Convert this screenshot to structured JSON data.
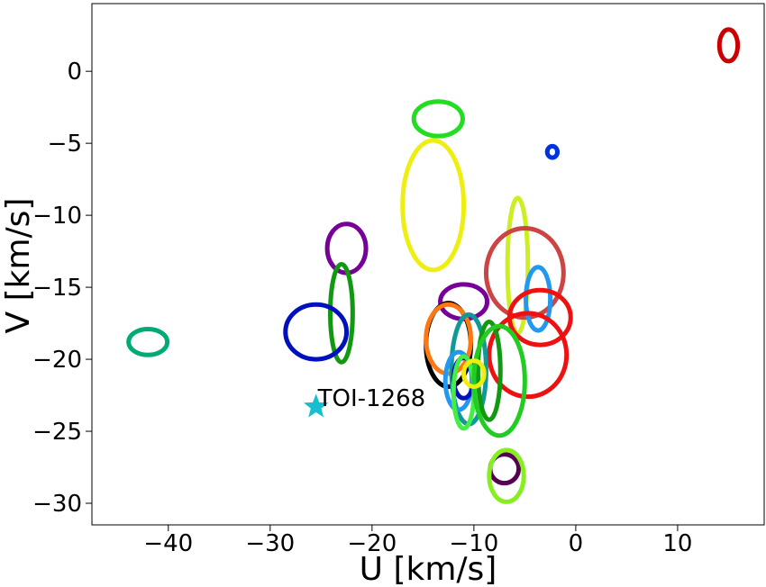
{
  "chart_data": {
    "type": "scatter",
    "xlabel": "U [km/s]",
    "ylabel": "V [km/s]",
    "xlim": [
      -47.5,
      18.5
    ],
    "ylim": [
      -31.5,
      4.7
    ],
    "xticks": [
      -40,
      -30,
      -20,
      -10,
      0,
      10
    ],
    "yticks": [
      0,
      -5,
      -10,
      -15,
      -20,
      -25,
      -30
    ],
    "xtick_labels": [
      "−40",
      "−30",
      "−20",
      "−10",
      "0",
      "10"
    ],
    "ytick_labels": [
      "0",
      "−5",
      "−10",
      "−15",
      "−20",
      "−25",
      "−30"
    ],
    "grid": false,
    "marker": {
      "label": "TOI-1268",
      "u": -25.5,
      "v": -23.3,
      "color": "#17becf",
      "shape": "star"
    },
    "ellipses": [
      {
        "u": 15.0,
        "v": 1.8,
        "du": 0.9,
        "dv": 1.1,
        "color": "#cc0000"
      },
      {
        "u": -2.3,
        "v": -5.6,
        "du": 0.5,
        "dv": 0.4,
        "color": "#0033dd"
      },
      {
        "u": -13.5,
        "v": -3.3,
        "du": 2.4,
        "dv": 1.2,
        "color": "#22dd22"
      },
      {
        "u": -14.0,
        "v": -9.3,
        "du": 3.0,
        "dv": 4.5,
        "color": "#eeee11"
      },
      {
        "u": -22.5,
        "v": -12.3,
        "du": 1.9,
        "dv": 1.7,
        "color": "#770099"
      },
      {
        "u": -23.0,
        "v": -16.8,
        "du": 1.1,
        "dv": 3.4,
        "color": "#119911"
      },
      {
        "u": -25.5,
        "v": -18.1,
        "du": 3.0,
        "dv": 1.9,
        "color": "#0011bb"
      },
      {
        "u": -42.0,
        "v": -18.8,
        "du": 1.9,
        "dv": 0.9,
        "color": "#00aa77"
      },
      {
        "u": -5.7,
        "v": -13.5,
        "du": 1.0,
        "dv": 4.7,
        "color": "#ccee22"
      },
      {
        "u": -5.0,
        "v": -14.0,
        "du": 3.8,
        "dv": 3.1,
        "color": "#cc4444"
      },
      {
        "u": -3.7,
        "v": -15.8,
        "du": 1.2,
        "dv": 2.2,
        "color": "#2299ee"
      },
      {
        "u": -3.5,
        "v": -17.1,
        "du": 3.0,
        "dv": 1.9,
        "color": "#ee1111"
      },
      {
        "u": -4.7,
        "v": -19.7,
        "du": 3.8,
        "dv": 2.9,
        "color": "#ee1111"
      },
      {
        "u": -11.0,
        "v": -16.0,
        "du": 2.3,
        "dv": 1.2,
        "color": "#770099"
      },
      {
        "u": -12.5,
        "v": -19.0,
        "du": 2.2,
        "dv": 2.9,
        "color": "#000000"
      },
      {
        "u": -12.5,
        "v": -18.6,
        "du": 2.2,
        "dv": 2.4,
        "color": "#ff7711"
      },
      {
        "u": -10.5,
        "v": -20.7,
        "du": 1.7,
        "dv": 3.8,
        "color": "#119999"
      },
      {
        "u": -11.5,
        "v": -21.5,
        "du": 1.3,
        "dv": 2.0,
        "color": "#2299ee"
      },
      {
        "u": -11.0,
        "v": -21.3,
        "du": 1.0,
        "dv": 1.4,
        "color": "#0011bb"
      },
      {
        "u": -11.0,
        "v": -22.3,
        "du": 1.0,
        "dv": 2.5,
        "color": "#44ee44"
      },
      {
        "u": -8.5,
        "v": -20.8,
        "du": 1.1,
        "dv": 3.4,
        "color": "#119911"
      },
      {
        "u": -7.5,
        "v": -21.5,
        "du": 2.5,
        "dv": 3.8,
        "color": "#22cc22"
      },
      {
        "u": -10.0,
        "v": -21.0,
        "du": 1.0,
        "dv": 0.9,
        "color": "#eeee11"
      },
      {
        "u": -7.0,
        "v": -27.6,
        "du": 1.4,
        "dv": 1.0,
        "color": "#550055"
      },
      {
        "u": -6.8,
        "v": -28.1,
        "du": 1.7,
        "dv": 1.8,
        "color": "#88ee22"
      }
    ]
  }
}
